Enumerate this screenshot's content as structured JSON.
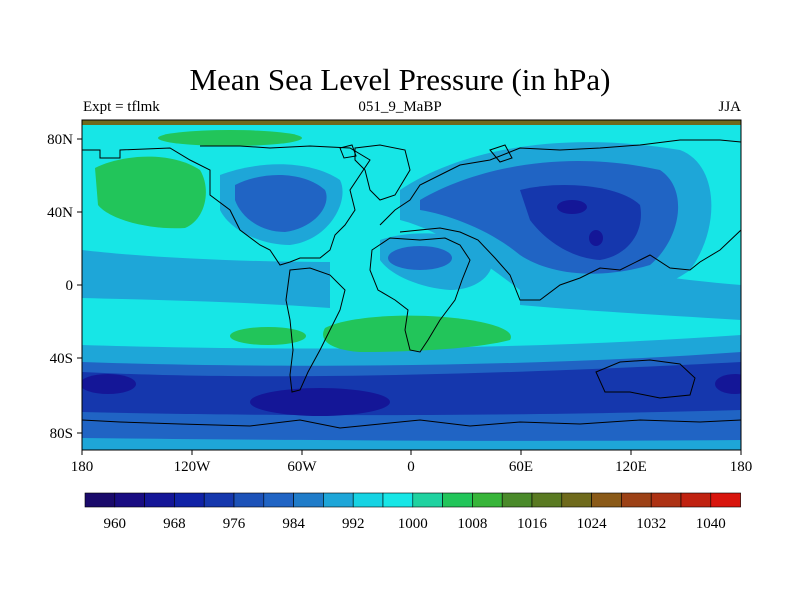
{
  "title": "Mean Sea Level Pressure (in hPa)",
  "subtitle_left": "Expt = tflmk",
  "subtitle_center": "051_9_MaBP",
  "subtitle_right": "JJA",
  "axes": {
    "x_ticks": [
      "180",
      "120W",
      "60W",
      "0",
      "60E",
      "120E",
      "180"
    ],
    "y_ticks": [
      "80N",
      "40N",
      "0",
      "40S",
      "80S"
    ]
  },
  "colorbar": {
    "labels": [
      "960",
      "968",
      "976",
      "984",
      "992",
      "1000",
      "1008",
      "1016",
      "1024",
      "1032",
      "1040"
    ],
    "colors": [
      "#1a0a6b",
      "#190d82",
      "#141697",
      "#1022a6",
      "#1537ad",
      "#1c52b8",
      "#2064c4",
      "#1f7cc9",
      "#1ea6d8",
      "#16d3e3",
      "#17e6e6",
      "#1fd2a0",
      "#22c55a",
      "#38b53a",
      "#4a8a2a",
      "#5a7a22",
      "#6f6a1c",
      "#8a5a18",
      "#9c4116",
      "#ad3214",
      "#c02210",
      "#d8140c"
    ]
  },
  "map_colors": {
    "ocean_base": "#17e6e6",
    "mid_blue": "#1ea6d8",
    "blue": "#2064c4",
    "dark_blue": "#1537ad",
    "deep_blue": "#141697",
    "green": "#22c55a",
    "top_strip": "#6f6a1c"
  }
}
